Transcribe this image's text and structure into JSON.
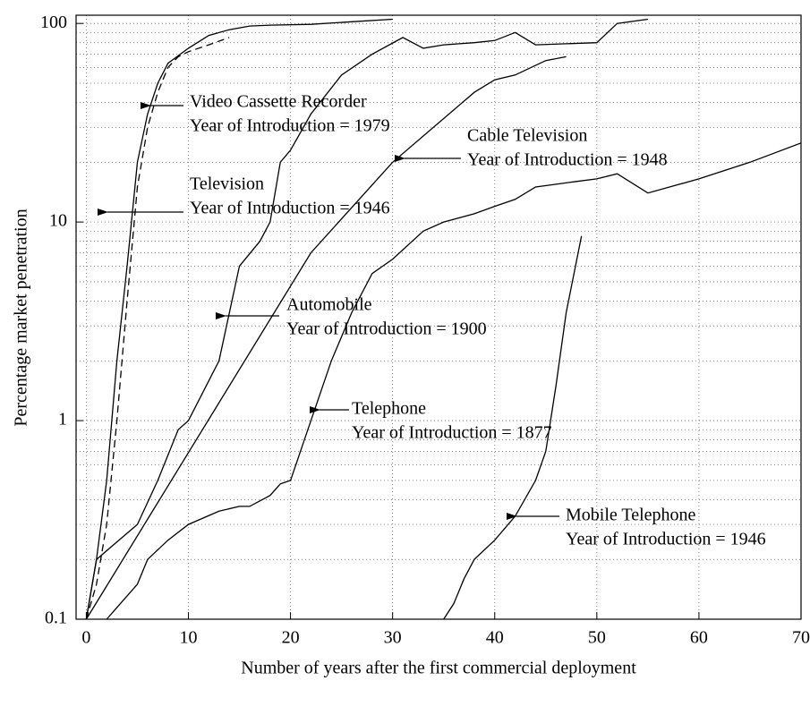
{
  "chart_data": {
    "type": "line",
    "xlabel": "Number of years after the first commercial deployment",
    "ylabel": "Percentage market penetration",
    "log_y": true,
    "grid": true,
    "xlim": [
      -1,
      70
    ],
    "xticks": [
      0,
      10,
      20,
      30,
      40,
      50,
      60,
      70
    ],
    "ylim": [
      0.1,
      110
    ],
    "yticks": [
      0.1,
      1,
      10,
      100
    ],
    "yminorticks": [
      0.2,
      0.3,
      0.4,
      0.5,
      0.6,
      0.7,
      0.8,
      0.9,
      2,
      3,
      4,
      5,
      6,
      7,
      8,
      9,
      20,
      30,
      40,
      50,
      60,
      70,
      80,
      90
    ],
    "series": [
      {
        "name": "Video Cassette Recorder",
        "color": "#000000",
        "dash": true,
        "x": [
          0,
          1,
          2,
          3,
          4,
          5,
          6,
          7,
          8,
          9,
          10,
          12,
          14
        ],
        "values": [
          0.1,
          0.15,
          0.3,
          1,
          4,
          15,
          30,
          45,
          60,
          68,
          72,
          78,
          85
        ]
      },
      {
        "name": "Television",
        "color": "#000000",
        "dash": false,
        "x": [
          0,
          1,
          2,
          3,
          4,
          5,
          6,
          7,
          8,
          10,
          12,
          14,
          16,
          18,
          22,
          26,
          30
        ],
        "values": [
          0.1,
          0.2,
          0.5,
          2,
          6,
          20,
          35,
          50,
          63,
          75,
          87,
          93,
          97,
          98,
          99,
          102,
          105
        ]
      },
      {
        "name": "Cable Television",
        "color": "#000000",
        "dash": false,
        "x": [
          0,
          22,
          30,
          38,
          40,
          42,
          45,
          47
        ],
        "values": [
          0.1,
          7,
          20,
          45,
          52,
          55,
          65,
          68
        ]
      },
      {
        "name": "Automobile",
        "color": "#000000",
        "dash": false,
        "x": [
          0,
          1,
          5,
          7,
          9,
          10,
          13,
          15,
          17,
          18,
          19,
          20,
          22,
          25,
          28,
          31,
          33,
          35,
          38,
          40,
          42,
          44,
          50,
          52,
          55
        ],
        "values": [
          0.1,
          0.2,
          0.3,
          0.5,
          0.9,
          1,
          2,
          6,
          8,
          10,
          20,
          23,
          35,
          55,
          70,
          85,
          75,
          78,
          80,
          82,
          90,
          78,
          80,
          100,
          105
        ]
      },
      {
        "name": "Telephone",
        "color": "#000000",
        "dash": false,
        "x": [
          2,
          5,
          6,
          8,
          10,
          13,
          15,
          16,
          18,
          19,
          20,
          22,
          24,
          26,
          28,
          30,
          33,
          35,
          38,
          40,
          42,
          44,
          48,
          50,
          52,
          55,
          60,
          65,
          70
        ],
        "values": [
          0.1,
          0.15,
          0.2,
          0.25,
          0.3,
          0.35,
          0.37,
          0.37,
          0.42,
          0.48,
          0.5,
          1,
          2,
          3.5,
          5.5,
          6.5,
          9,
          10,
          11,
          12,
          13,
          15,
          16,
          16.5,
          17.5,
          14,
          16.5,
          20,
          25
        ]
      },
      {
        "name": "Mobile Telephone",
        "color": "#000000",
        "dash": false,
        "x": [
          35,
          36,
          37,
          38,
          40,
          42,
          44,
          45,
          46,
          47,
          48.5
        ],
        "values": [
          0.1,
          0.12,
          0.16,
          0.2,
          0.25,
          0.33,
          0.5,
          0.7,
          1.5,
          3.5,
          8.5
        ]
      }
    ],
    "annotations": [
      {
        "series": "Video Cassette Recorder",
        "detail": "Year of Introduction = 1979"
      },
      {
        "series": "Television",
        "detail": "Year of Introduction = 1946"
      },
      {
        "series": "Cable Television",
        "detail": "Year of Introduction = 1948"
      },
      {
        "series": "Automobile",
        "detail": "Year of Introduction = 1900"
      },
      {
        "series": "Telephone",
        "detail": "Year of Introduction = 1877"
      },
      {
        "series": "Mobile Telephone",
        "detail": "Year of Introduction = 1946"
      }
    ]
  }
}
